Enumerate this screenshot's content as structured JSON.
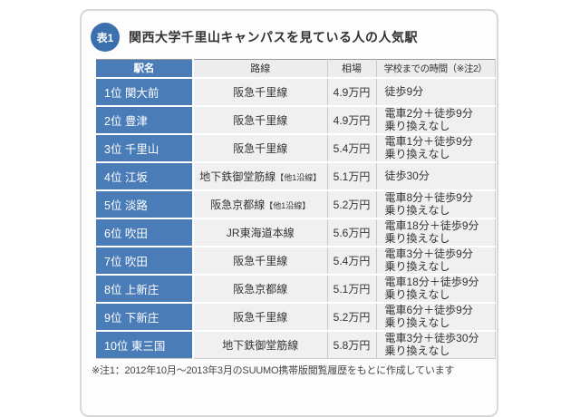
{
  "colors": {
    "accent_blue": "#4a7cb8",
    "badge_blue": "#3c6fae",
    "cell_bg": "#f0f0f0",
    "header_bg": "#ededed",
    "row_divider": "#ffffff",
    "column_divider": "#c9c9c9",
    "table_top_border": "#9a9a9a",
    "card_border": "#d8d8d8",
    "text": "#333333"
  },
  "card": {
    "badge": "表1",
    "title": "関西大学千里山キャンパスを見ている人の人気駅",
    "footnote": "※注1：2012年10月～2013年3月のSUUMO携帯版閲覧履歴をもとに作成しています"
  },
  "chart_data": {
    "type": "table",
    "title": "関西大学千里山キャンパスを見ている人の人気駅",
    "columns": [
      "駅名",
      "路線",
      "相場",
      "学校までの時間（※注2）"
    ],
    "rows": [
      {
        "rank": "1位",
        "station": "関大前",
        "line": "阪急千里線",
        "line_note": "",
        "price": "4.9万円",
        "time": "徒歩9分"
      },
      {
        "rank": "2位",
        "station": "豊津",
        "line": "阪急千里線",
        "line_note": "",
        "price": "4.9万円",
        "time": "電車2分＋徒歩9分\n乗り換えなし"
      },
      {
        "rank": "3位",
        "station": "千里山",
        "line": "阪急千里線",
        "line_note": "",
        "price": "5.4万円",
        "time": "電車1分＋徒歩9分\n乗り換えなし"
      },
      {
        "rank": "4位",
        "station": "江坂",
        "line": "地下鉄御堂筋線",
        "line_note": "【他1沿線】",
        "price": "5.1万円",
        "time": "徒歩30分"
      },
      {
        "rank": "5位",
        "station": "淡路",
        "line": "阪急京都線",
        "line_note": "【他1沿線】",
        "price": "5.2万円",
        "time": "電車8分＋徒歩9分\n乗り換えなし"
      },
      {
        "rank": "6位",
        "station": "吹田",
        "line": "JR東海道本線",
        "line_note": "",
        "price": "5.6万円",
        "time": "電車18分＋徒歩9分\n乗り換えなし"
      },
      {
        "rank": "7位",
        "station": "吹田",
        "line": "阪急千里線",
        "line_note": "",
        "price": "5.4万円",
        "time": "電車3分＋徒歩9分\n乗り換えなし"
      },
      {
        "rank": "8位",
        "station": "上新庄",
        "line": "阪急京都線",
        "line_note": "",
        "price": "5.1万円",
        "time": "電車18分＋徒歩9分\n乗り換えなし"
      },
      {
        "rank": "9位",
        "station": "下新庄",
        "line": "阪急千里線",
        "line_note": "",
        "price": "5.2万円",
        "time": "電車6分＋徒歩9分\n乗り換えなし"
      },
      {
        "rank": "10位",
        "station": "東三国",
        "line": "地下鉄御堂筋線",
        "line_note": "",
        "price": "5.8万円",
        "time": "電車3分＋徒歩30分\n乗り換えなし"
      }
    ]
  }
}
